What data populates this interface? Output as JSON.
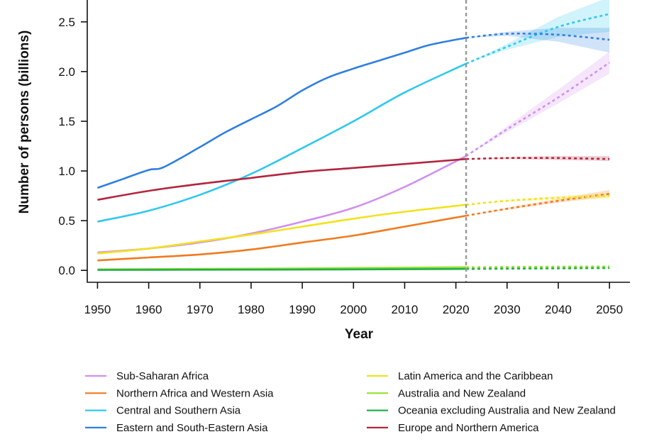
{
  "chart_data": {
    "type": "line",
    "title": "",
    "xlabel": "Year",
    "ylabel": "Number of persons (billions)",
    "xlim": [
      1948,
      2054
    ],
    "ylim": [
      -0.12,
      2.72
    ],
    "x_ticks": [
      1950,
      1960,
      1970,
      1980,
      1990,
      2000,
      2010,
      2020,
      2030,
      2040,
      2050
    ],
    "y_ticks": [
      0.0,
      0.5,
      1.0,
      1.5,
      2.0,
      2.5
    ],
    "y_tick_labels": [
      "0.0",
      "0.5",
      "1.0",
      "1.5",
      "2.0",
      "2.5"
    ],
    "projection_start_year": 2022,
    "legend_position": "bottom",
    "series": [
      {
        "name": "Sub-Saharan Africa",
        "color": "#d08ff0",
        "estimates": [
          [
            1950,
            0.18
          ],
          [
            1960,
            0.22
          ],
          [
            1970,
            0.28
          ],
          [
            1980,
            0.37
          ],
          [
            1990,
            0.49
          ],
          [
            2000,
            0.63
          ],
          [
            2010,
            0.84
          ],
          [
            2022,
            1.15
          ]
        ],
        "projection": [
          [
            2022,
            1.15
          ],
          [
            2030,
            1.42
          ],
          [
            2040,
            1.74
          ],
          [
            2050,
            2.09
          ]
        ],
        "band": [
          [
            2022,
            1.15,
            1.15
          ],
          [
            2030,
            1.39,
            1.45
          ],
          [
            2040,
            1.68,
            1.82
          ],
          [
            2050,
            1.98,
            2.2
          ]
        ]
      },
      {
        "name": "Northern Africa and Western Asia",
        "color": "#f07a1e",
        "estimates": [
          [
            1950,
            0.1
          ],
          [
            1960,
            0.13
          ],
          [
            1970,
            0.16
          ],
          [
            1980,
            0.21
          ],
          [
            1990,
            0.28
          ],
          [
            2000,
            0.35
          ],
          [
            2010,
            0.44
          ],
          [
            2022,
            0.55
          ]
        ],
        "projection": [
          [
            2022,
            0.55
          ],
          [
            2030,
            0.62
          ],
          [
            2040,
            0.7
          ],
          [
            2050,
            0.77
          ]
        ],
        "band": [
          [
            2022,
            0.55,
            0.55
          ],
          [
            2030,
            0.61,
            0.63
          ],
          [
            2040,
            0.68,
            0.72
          ],
          [
            2050,
            0.74,
            0.81
          ]
        ]
      },
      {
        "name": "Central and Southern Asia",
        "color": "#2ec8ee",
        "estimates": [
          [
            1950,
            0.49
          ],
          [
            1960,
            0.6
          ],
          [
            1970,
            0.76
          ],
          [
            1980,
            0.97
          ],
          [
            1990,
            1.23
          ],
          [
            2000,
            1.5
          ],
          [
            2010,
            1.79
          ],
          [
            2022,
            2.08
          ]
        ],
        "projection": [
          [
            2022,
            2.08
          ],
          [
            2030,
            2.25
          ],
          [
            2040,
            2.45
          ],
          [
            2050,
            2.58
          ]
        ],
        "band": [
          [
            2022,
            2.08,
            2.08
          ],
          [
            2030,
            2.22,
            2.28
          ],
          [
            2040,
            2.35,
            2.55
          ],
          [
            2050,
            2.4,
            2.75
          ]
        ]
      },
      {
        "name": "Eastern and South-Eastern Asia",
        "color": "#2f7fe0",
        "estimates": [
          [
            1950,
            0.83
          ],
          [
            1955,
            0.92
          ],
          [
            1960,
            1.01
          ],
          [
            1963,
            1.04
          ],
          [
            1970,
            1.24
          ],
          [
            1975,
            1.39
          ],
          [
            1980,
            1.52
          ],
          [
            1985,
            1.65
          ],
          [
            1990,
            1.81
          ],
          [
            1995,
            1.94
          ],
          [
            2000,
            2.03
          ],
          [
            2005,
            2.11
          ],
          [
            2010,
            2.19
          ],
          [
            2015,
            2.27
          ],
          [
            2022,
            2.34
          ]
        ],
        "projection": [
          [
            2022,
            2.34
          ],
          [
            2030,
            2.38
          ],
          [
            2040,
            2.37
          ],
          [
            2050,
            2.32
          ]
        ],
        "band": [
          [
            2022,
            2.34,
            2.34
          ],
          [
            2030,
            2.36,
            2.4
          ],
          [
            2040,
            2.3,
            2.44
          ],
          [
            2050,
            2.19,
            2.44
          ]
        ]
      },
      {
        "name": "Latin America and the Caribbean",
        "color": "#f2e21c",
        "estimates": [
          [
            1950,
            0.17
          ],
          [
            1960,
            0.22
          ],
          [
            1970,
            0.29
          ],
          [
            1980,
            0.36
          ],
          [
            1990,
            0.44
          ],
          [
            2000,
            0.52
          ],
          [
            2010,
            0.59
          ],
          [
            2022,
            0.66
          ]
        ],
        "projection": [
          [
            2022,
            0.66
          ],
          [
            2030,
            0.7
          ],
          [
            2040,
            0.73
          ],
          [
            2050,
            0.75
          ]
        ],
        "band": [
          [
            2022,
            0.66,
            0.66
          ],
          [
            2030,
            0.69,
            0.71
          ],
          [
            2040,
            0.71,
            0.75
          ],
          [
            2050,
            0.72,
            0.78
          ]
        ]
      },
      {
        "name": "Australia and New Zealand",
        "color": "#96e02e",
        "estimates": [
          [
            1950,
            0.01
          ],
          [
            1970,
            0.015
          ],
          [
            1990,
            0.02
          ],
          [
            2010,
            0.027
          ],
          [
            2022,
            0.031
          ]
        ],
        "projection": [
          [
            2022,
            0.031
          ],
          [
            2030,
            0.034
          ],
          [
            2040,
            0.037
          ],
          [
            2050,
            0.039
          ]
        ],
        "band": [
          [
            2022,
            0.031,
            0.031
          ],
          [
            2050,
            0.035,
            0.043
          ]
        ]
      },
      {
        "name": "Oceania excluding Australia and New Zealand",
        "color": "#22b04a",
        "estimates": [
          [
            1950,
            0.004
          ],
          [
            1970,
            0.006
          ],
          [
            1990,
            0.008
          ],
          [
            2010,
            0.011
          ],
          [
            2022,
            0.014
          ]
        ],
        "projection": [
          [
            2022,
            0.014
          ],
          [
            2030,
            0.017
          ],
          [
            2040,
            0.02
          ],
          [
            2050,
            0.023
          ]
        ],
        "band": [
          [
            2022,
            0.014,
            0.014
          ],
          [
            2050,
            0.021,
            0.026
          ]
        ]
      },
      {
        "name": "Europe and Northern America",
        "color": "#b3263e",
        "estimates": [
          [
            1950,
            0.71
          ],
          [
            1960,
            0.8
          ],
          [
            1970,
            0.87
          ],
          [
            1980,
            0.93
          ],
          [
            1990,
            0.99
          ],
          [
            2000,
            1.03
          ],
          [
            2010,
            1.07
          ],
          [
            2022,
            1.12
          ]
        ],
        "projection": [
          [
            2022,
            1.12
          ],
          [
            2030,
            1.13
          ],
          [
            2040,
            1.13
          ],
          [
            2050,
            1.12
          ]
        ],
        "band": [
          [
            2022,
            1.12,
            1.12
          ],
          [
            2030,
            1.12,
            1.14
          ],
          [
            2040,
            1.11,
            1.15
          ],
          [
            2050,
            1.1,
            1.15
          ]
        ]
      }
    ]
  }
}
